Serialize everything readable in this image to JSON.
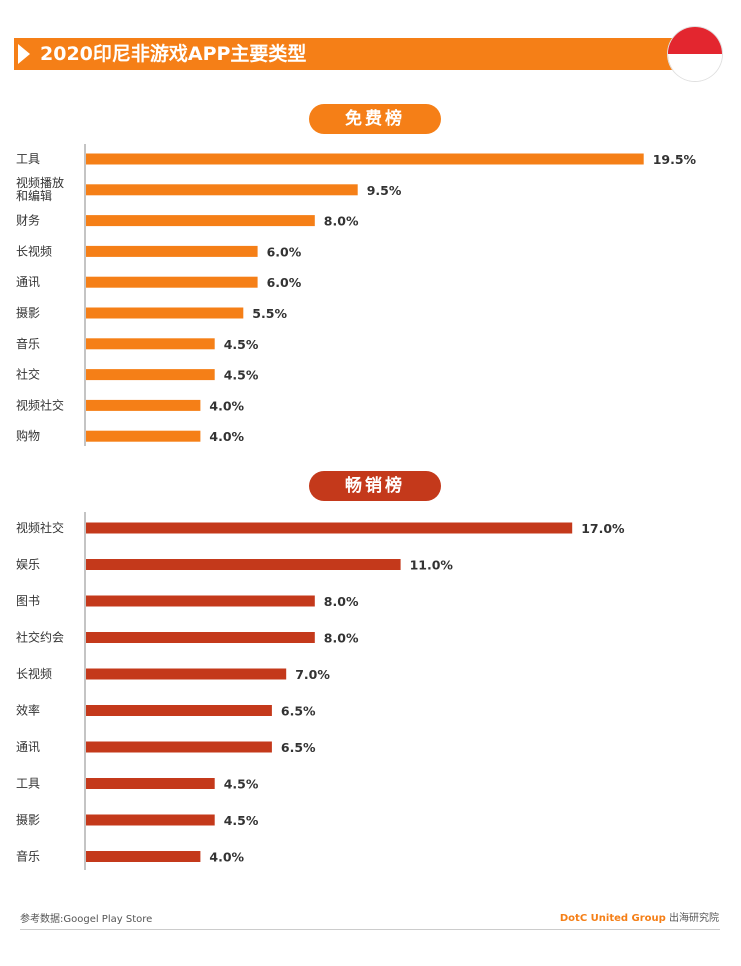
{
  "title": "2020印尼非游戏APP主要类型",
  "colors": {
    "free": "#f57f17",
    "paid": "#c4391b",
    "flag_red": "#e3262f"
  },
  "chart_data": [
    {
      "type": "bar",
      "orientation": "horizontal",
      "title": "免费榜",
      "categories": [
        "工具",
        "视频播放\n和编辑",
        "财务",
        "长视频",
        "通讯",
        "摄影",
        "音乐",
        "社交",
        "视频社交",
        "购物"
      ],
      "values": [
        19.5,
        9.5,
        8.0,
        6.0,
        6.0,
        5.5,
        4.5,
        4.5,
        4.0,
        4.0
      ],
      "value_labels": [
        "19.5%",
        "9.5%",
        "8.0%",
        "6.0%",
        "6.0%",
        "5.5%",
        "4.5%",
        "4.5%",
        "4.0%",
        "4.0%"
      ],
      "color": "#f57f17"
    },
    {
      "type": "bar",
      "orientation": "horizontal",
      "title": "畅销榜",
      "categories": [
        "视频社交",
        "娱乐",
        "图书",
        "社交约会",
        "长视频",
        "效率",
        "通讯",
        "工具",
        "摄影",
        "音乐"
      ],
      "values": [
        17.0,
        11.0,
        8.0,
        8.0,
        7.0,
        6.5,
        6.5,
        4.5,
        4.5,
        4.0
      ],
      "value_labels": [
        "17.0%",
        "11.0%",
        "8.0%",
        "8.0%",
        "7.0%",
        "6.5%",
        "6.5%",
        "4.5%",
        "4.5%",
        "4.0%"
      ],
      "color": "#c4391b"
    }
  ],
  "footer": {
    "source": "参考数据:Googel Play Store",
    "brand": "DotC United Group",
    "brand_suffix": " 出海研究院"
  }
}
